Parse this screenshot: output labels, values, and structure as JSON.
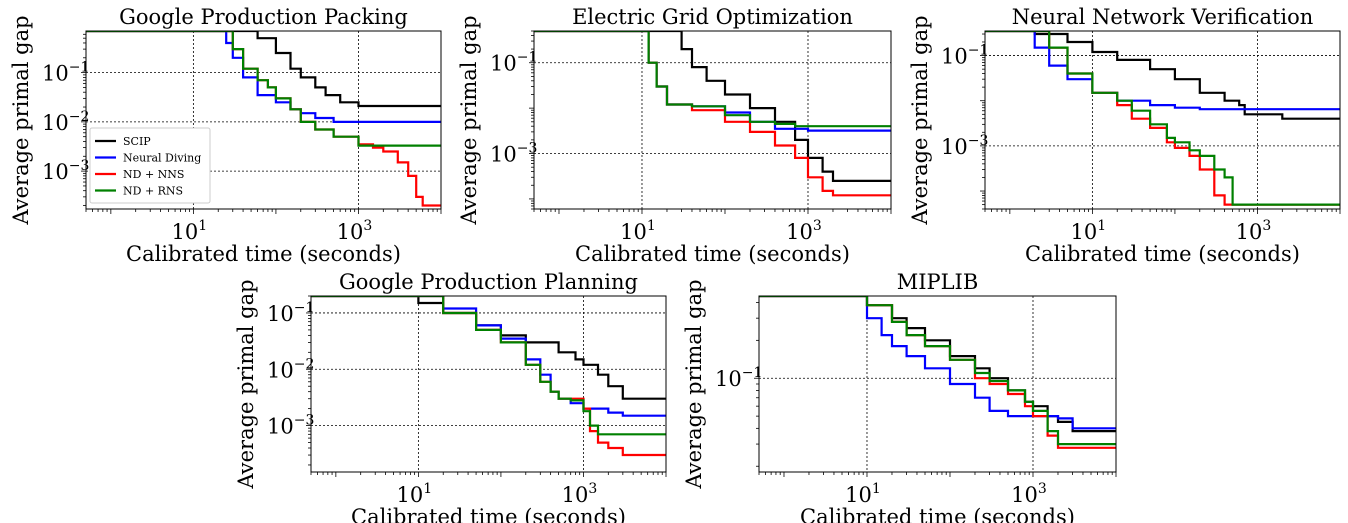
{
  "chart_data": [
    {
      "type": "line",
      "title": "Google Production Packing",
      "xlabel": "Calibrated time (seconds)",
      "ylabel": "Average primal gap",
      "xscale": "log",
      "yscale": "log",
      "xlim": [
        0.5,
        10000
      ],
      "ylim": [
        0.00017,
        0.7
      ],
      "xticks": [
        {
          "v": 10,
          "label": "10",
          "exp": "1"
        },
        {
          "v": 1000,
          "label": "10",
          "exp": "3"
        }
      ],
      "yticks": [
        {
          "v": 0.1,
          "label": "10",
          "exp": "−1"
        },
        {
          "v": 0.01,
          "label": "10",
          "exp": "−2"
        },
        {
          "v": 0.001,
          "label": "10",
          "exp": "−3"
        }
      ],
      "grid": true,
      "legend": {
        "placement": "lower-left",
        "entries": [
          "SCIP",
          "Neural Diving",
          "ND + NNS",
          "ND + RNS"
        ]
      },
      "series": [
        {
          "name": "SCIP",
          "color": "#000000",
          "x": [
            0.5,
            40,
            60,
            100,
            150,
            200,
            300,
            400,
            600,
            1000,
            2000,
            10000
          ],
          "y": [
            0.7,
            0.7,
            0.5,
            0.25,
            0.12,
            0.08,
            0.05,
            0.035,
            0.025,
            0.021,
            0.021,
            0.021
          ]
        },
        {
          "name": "Neural Diving",
          "color": "#0000ff",
          "x": [
            0.5,
            20,
            25,
            30,
            40,
            60,
            100,
            150,
            200,
            300,
            500,
            1000,
            10000
          ],
          "y": [
            0.7,
            0.7,
            0.4,
            0.2,
            0.08,
            0.035,
            0.025,
            0.018,
            0.015,
            0.012,
            0.01,
            0.01,
            0.01
          ]
        },
        {
          "name": "ND + NNS",
          "color": "#ff0000",
          "x": [
            0.5,
            20,
            30,
            40,
            60,
            80,
            100,
            150,
            200,
            300,
            500,
            1000,
            1500,
            2000,
            3000,
            4000,
            5000,
            6000,
            10000
          ],
          "y": [
            0.7,
            0.7,
            0.3,
            0.12,
            0.07,
            0.05,
            0.03,
            0.018,
            0.01,
            0.007,
            0.005,
            0.0035,
            0.003,
            0.0025,
            0.0015,
            0.0008,
            0.0003,
            0.0002,
            0.0002
          ]
        },
        {
          "name": "ND + RNS",
          "color": "#008000",
          "x": [
            0.5,
            20,
            30,
            40,
            60,
            80,
            100,
            150,
            200,
            300,
            500,
            1000,
            10000
          ],
          "y": [
            0.7,
            0.7,
            0.3,
            0.12,
            0.07,
            0.05,
            0.03,
            0.018,
            0.01,
            0.007,
            0.005,
            0.0033,
            0.0033
          ]
        }
      ]
    },
    {
      "type": "line",
      "title": "Electric Grid Optimization",
      "xlabel": "Calibrated time (seconds)",
      "ylabel": "Average primal gap",
      "xscale": "log",
      "yscale": "log",
      "xlim": [
        0.5,
        10000
      ],
      "ylim": [
        6e-05,
        0.5
      ],
      "xticks": [
        {
          "v": 10,
          "label": "10",
          "exp": "1"
        },
        {
          "v": 1000,
          "label": "10",
          "exp": "3"
        }
      ],
      "yticks": [
        {
          "v": 0.1,
          "label": "10",
          "exp": "−1"
        },
        {
          "v": 0.001,
          "label": "10",
          "exp": "−3"
        }
      ],
      "grid": true,
      "series": [
        {
          "name": "SCIP",
          "color": "#000000",
          "x": [
            0.5,
            25,
            30,
            40,
            60,
            100,
            200,
            400,
            700,
            1000,
            1500,
            2000,
            10000
          ],
          "y": [
            0.5,
            0.5,
            0.2,
            0.08,
            0.04,
            0.02,
            0.01,
            0.005,
            0.002,
            0.0008,
            0.0004,
            0.00025,
            0.00025
          ]
        },
        {
          "name": "Neural Diving",
          "color": "#0000ff",
          "x": [
            0.5,
            10,
            12,
            15,
            20,
            40,
            100,
            200,
            400,
            1000,
            10000
          ],
          "y": [
            0.5,
            0.5,
            0.1,
            0.03,
            0.012,
            0.011,
            0.008,
            0.005,
            0.0035,
            0.0032,
            0.0032
          ]
        },
        {
          "name": "ND + NNS",
          "color": "#ff0000",
          "x": [
            0.5,
            10,
            12,
            15,
            20,
            40,
            100,
            200,
            400,
            700,
            1000,
            1500,
            2000,
            10000
          ],
          "y": [
            0.5,
            0.5,
            0.1,
            0.03,
            0.012,
            0.009,
            0.005,
            0.003,
            0.0015,
            0.0008,
            0.0003,
            0.00015,
            0.00012,
            0.00012
          ]
        },
        {
          "name": "ND + RNS",
          "color": "#008000",
          "x": [
            0.5,
            10,
            12,
            15,
            20,
            40,
            100,
            200,
            400,
            700,
            10000
          ],
          "y": [
            0.5,
            0.5,
            0.1,
            0.03,
            0.012,
            0.011,
            0.007,
            0.005,
            0.0045,
            0.004,
            0.004
          ]
        }
      ]
    },
    {
      "type": "line",
      "title": "Neural Network Verification",
      "xlabel": "Calibrated time (seconds)",
      "ylabel": "Average primal gap",
      "xscale": "log",
      "yscale": "log",
      "xlim": [
        0.5,
        10000
      ],
      "ylim": [
        4e-05,
        0.35
      ],
      "xticks": [
        {
          "v": 10,
          "label": "10",
          "exp": "1"
        },
        {
          "v": 1000,
          "label": "10",
          "exp": "3"
        }
      ],
      "yticks": [
        {
          "v": 0.1,
          "label": "10",
          "exp": "−1"
        },
        {
          "v": 0.001,
          "label": "10",
          "exp": "−3"
        }
      ],
      "grid": true,
      "series": [
        {
          "name": "SCIP",
          "color": "#000000",
          "x": [
            0.5,
            2,
            5,
            10,
            20,
            50,
            100,
            200,
            400,
            600,
            700,
            1000,
            2000,
            10000
          ],
          "y": [
            0.35,
            0.3,
            0.2,
            0.12,
            0.08,
            0.05,
            0.03,
            0.015,
            0.01,
            0.008,
            0.005,
            0.005,
            0.004,
            0.004
          ]
        },
        {
          "name": "Neural Diving",
          "color": "#0000ff",
          "x": [
            0.5,
            1,
            2,
            3,
            5,
            10,
            20,
            50,
            100,
            200,
            500,
            1000,
            10000
          ],
          "y": [
            0.35,
            0.35,
            0.15,
            0.06,
            0.03,
            0.015,
            0.01,
            0.008,
            0.007,
            0.0065,
            0.0065,
            0.0065,
            0.0065
          ]
        },
        {
          "name": "ND + NNS",
          "color": "#ff0000",
          "x": [
            0.5,
            2,
            3,
            5,
            10,
            20,
            30,
            50,
            80,
            100,
            150,
            200,
            300,
            400,
            600,
            1000,
            10000
          ],
          "y": [
            0.35,
            0.35,
            0.15,
            0.04,
            0.015,
            0.008,
            0.004,
            0.0025,
            0.0012,
            0.0009,
            0.0006,
            0.0003,
            8e-05,
            5e-05,
            5e-05,
            5e-05,
            5e-05
          ]
        },
        {
          "name": "ND + RNS",
          "color": "#008000",
          "x": [
            0.5,
            2,
            3,
            5,
            10,
            20,
            30,
            50,
            80,
            100,
            150,
            200,
            300,
            400,
            500,
            600,
            1000,
            10000
          ],
          "y": [
            0.35,
            0.35,
            0.15,
            0.04,
            0.015,
            0.01,
            0.006,
            0.003,
            0.0015,
            0.0012,
            0.0008,
            0.0006,
            0.0003,
            0.0002,
            5e-05,
            5e-05,
            5e-05,
            5e-05
          ]
        }
      ]
    },
    {
      "type": "line",
      "title": "Google Production Planning",
      "xlabel": "Calibrated time (seconds)",
      "ylabel": "Average primal gap",
      "xscale": "log",
      "yscale": "log",
      "xlim": [
        0.5,
        10000
      ],
      "ylim": [
        0.00015,
        0.2
      ],
      "xticks": [
        {
          "v": 10,
          "label": "10",
          "exp": "1"
        },
        {
          "v": 1000,
          "label": "10",
          "exp": "3"
        }
      ],
      "yticks": [
        {
          "v": 0.1,
          "label": "10",
          "exp": "−1"
        },
        {
          "v": 0.01,
          "label": "10",
          "exp": "−2"
        },
        {
          "v": 0.001,
          "label": "10",
          "exp": "−3"
        }
      ],
      "grid": true,
      "series": [
        {
          "name": "SCIP",
          "color": "#000000",
          "x": [
            0.5,
            10,
            20,
            50,
            100,
            200,
            500,
            800,
            1000,
            1500,
            2000,
            3000,
            5000,
            10000
          ],
          "y": [
            0.2,
            0.15,
            0.1,
            0.06,
            0.04,
            0.03,
            0.02,
            0.015,
            0.012,
            0.008,
            0.005,
            0.003,
            0.003,
            0.003
          ]
        },
        {
          "name": "Neural Diving",
          "color": "#0000ff",
          "x": [
            0.5,
            10,
            20,
            50,
            100,
            200,
            300,
            400,
            500,
            700,
            1000,
            2000,
            3000,
            10000
          ],
          "y": [
            0.2,
            0.2,
            0.12,
            0.06,
            0.035,
            0.015,
            0.008,
            0.004,
            0.003,
            0.0025,
            0.002,
            0.0017,
            0.0015,
            0.0015
          ]
        },
        {
          "name": "ND + NNS",
          "color": "#ff0000",
          "x": [
            0.5,
            10,
            20,
            50,
            100,
            200,
            300,
            400,
            500,
            700,
            1000,
            1200,
            1500,
            2000,
            3000,
            10000
          ],
          "y": [
            0.2,
            0.2,
            0.1,
            0.05,
            0.03,
            0.012,
            0.006,
            0.004,
            0.003,
            0.003,
            0.002,
            0.0008,
            0.0005,
            0.0004,
            0.0003,
            0.0003
          ]
        },
        {
          "name": "ND + RNS",
          "color": "#008000",
          "x": [
            0.5,
            10,
            20,
            50,
            100,
            200,
            300,
            400,
            500,
            700,
            1000,
            1200,
            1500,
            3000,
            10000
          ],
          "y": [
            0.2,
            0.2,
            0.1,
            0.05,
            0.03,
            0.012,
            0.006,
            0.004,
            0.003,
            0.0028,
            0.0018,
            0.001,
            0.0007,
            0.0007,
            0.0007
          ]
        }
      ]
    },
    {
      "type": "line",
      "title": "MIPLIB",
      "xlabel": "Calibrated time (seconds)",
      "ylabel": "Average primal gap",
      "xscale": "log",
      "yscale": "log",
      "xlim": [
        0.5,
        10000
      ],
      "ylim": [
        0.018,
        0.45
      ],
      "xticks": [
        {
          "v": 10,
          "label": "10",
          "exp": "1"
        },
        {
          "v": 1000,
          "label": "10",
          "exp": "3"
        }
      ],
      "yticks": [
        {
          "v": 0.1,
          "label": "10",
          "exp": "−1"
        }
      ],
      "grid": true,
      "series": [
        {
          "name": "SCIP",
          "color": "#000000",
          "x": [
            0.5,
            8,
            10,
            20,
            30,
            50,
            100,
            200,
            300,
            500,
            800,
            1000,
            1500,
            2000,
            3000,
            10000
          ],
          "y": [
            0.45,
            0.45,
            0.38,
            0.3,
            0.25,
            0.2,
            0.15,
            0.12,
            0.1,
            0.08,
            0.065,
            0.06,
            0.05,
            0.045,
            0.038,
            0.038
          ]
        },
        {
          "name": "Neural Diving",
          "color": "#0000ff",
          "x": [
            0.5,
            7,
            10,
            15,
            20,
            30,
            50,
            100,
            200,
            300,
            500,
            1000,
            2000,
            3000,
            10000
          ],
          "y": [
            0.45,
            0.45,
            0.3,
            0.22,
            0.18,
            0.15,
            0.12,
            0.09,
            0.07,
            0.055,
            0.05,
            0.05,
            0.048,
            0.04,
            0.04
          ]
        },
        {
          "name": "ND + NNS",
          "color": "#ff0000",
          "x": [
            0.5,
            8,
            10,
            20,
            30,
            50,
            100,
            200,
            300,
            500,
            800,
            1000,
            1500,
            2000,
            10000
          ],
          "y": [
            0.45,
            0.45,
            0.38,
            0.28,
            0.22,
            0.18,
            0.14,
            0.1,
            0.09,
            0.075,
            0.06,
            0.05,
            0.035,
            0.028,
            0.028
          ]
        },
        {
          "name": "ND + RNS",
          "color": "#008000",
          "x": [
            0.5,
            8,
            10,
            20,
            30,
            50,
            100,
            200,
            300,
            500,
            800,
            1000,
            1500,
            2000,
            10000
          ],
          "y": [
            0.45,
            0.45,
            0.38,
            0.28,
            0.22,
            0.18,
            0.14,
            0.11,
            0.095,
            0.08,
            0.065,
            0.055,
            0.038,
            0.03,
            0.03
          ]
        }
      ]
    }
  ]
}
